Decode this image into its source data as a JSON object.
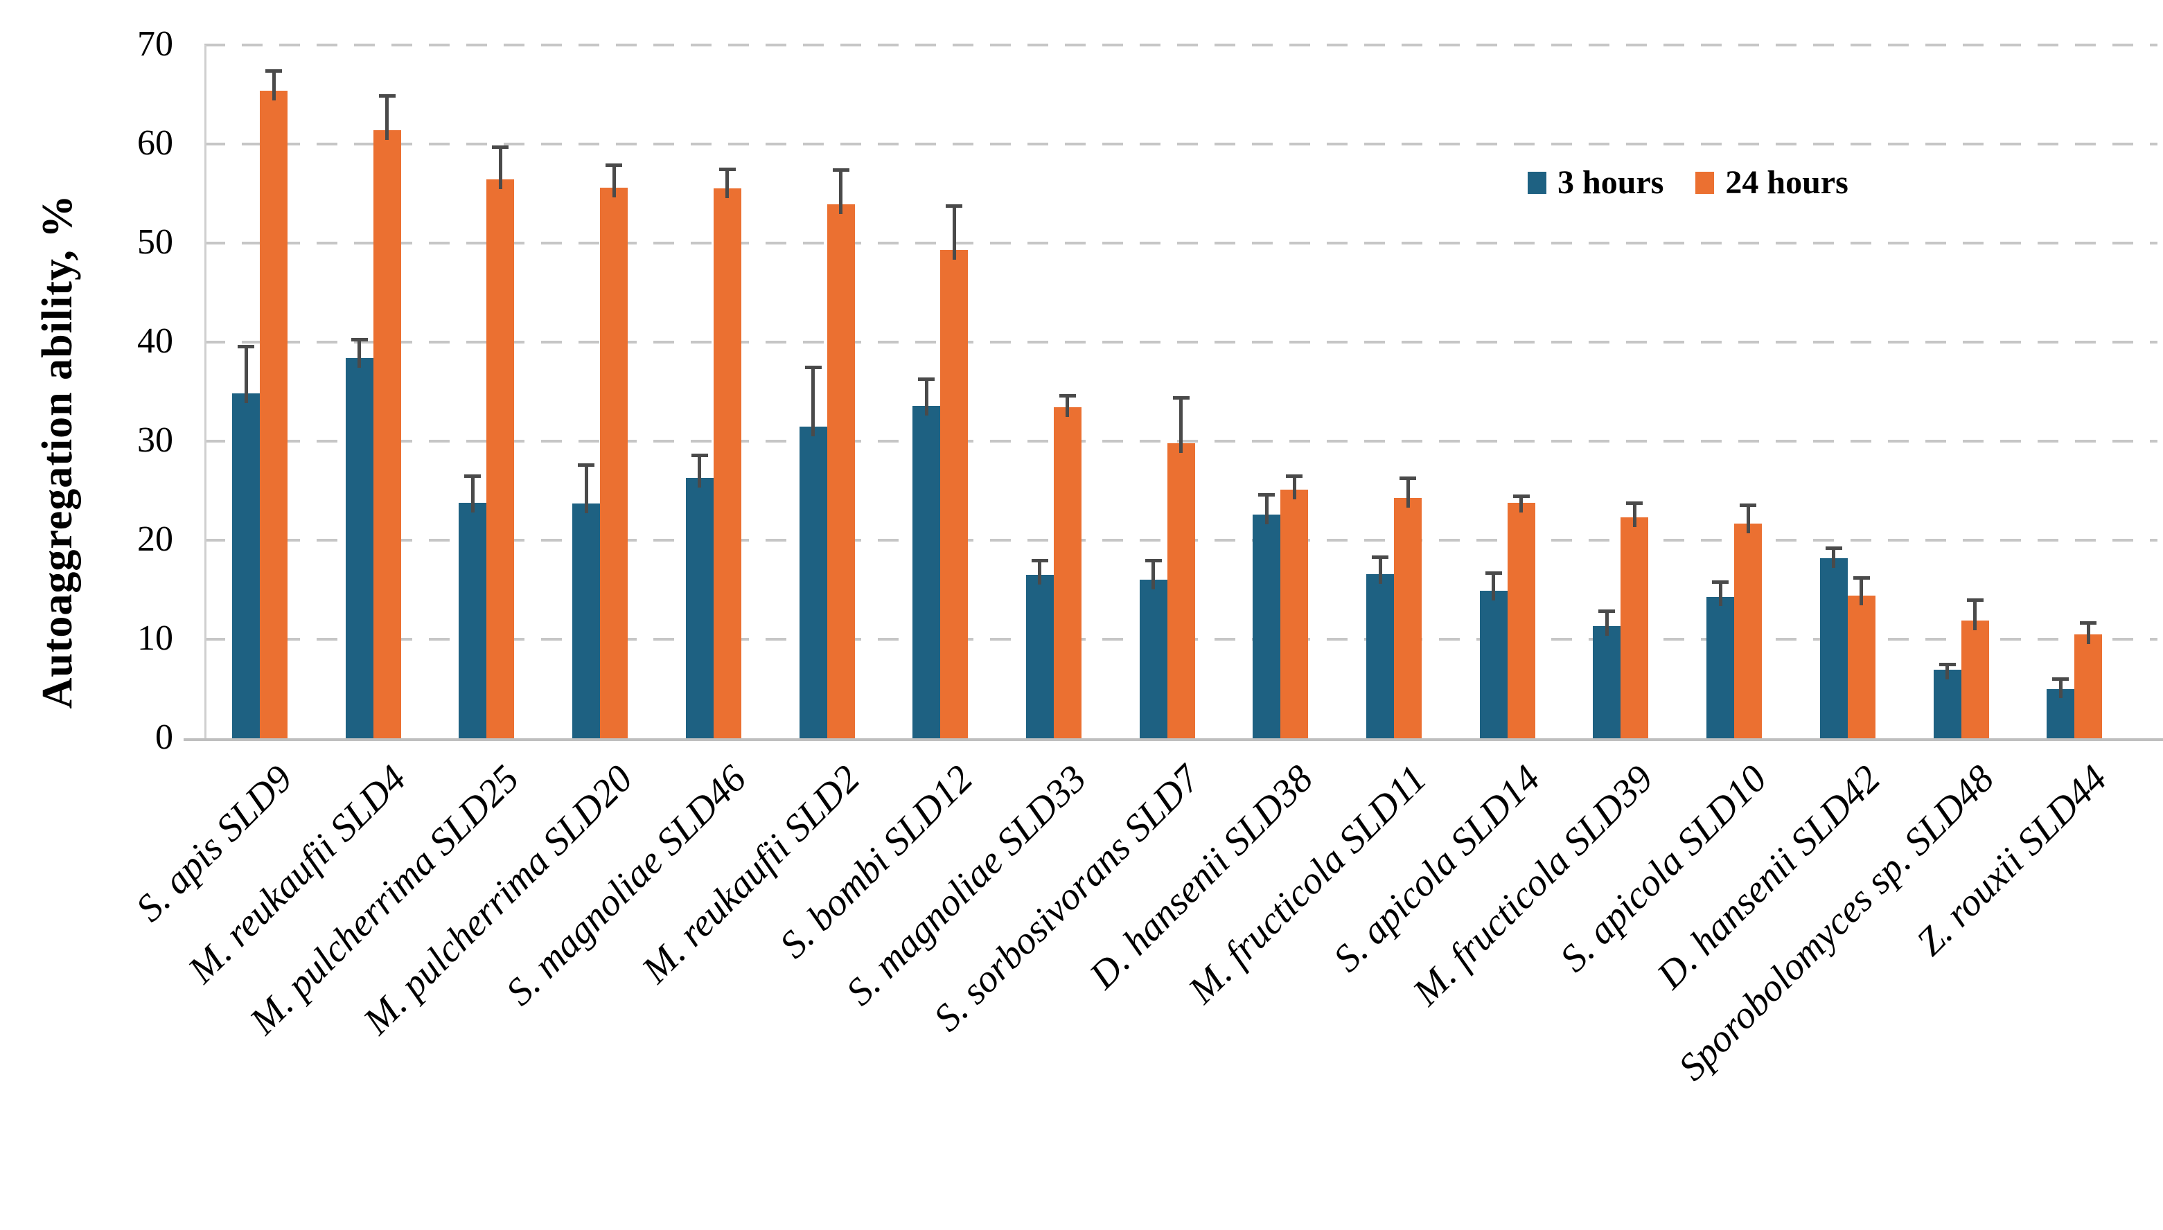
{
  "chart_data": {
    "type": "bar",
    "title": "",
    "xlabel": "",
    "ylabel": "Autoaggregation ability, %",
    "ylim": [
      0,
      70
    ],
    "yticks": [
      0,
      10,
      20,
      30,
      40,
      50,
      60,
      70
    ],
    "grid": "horizontal dashed gridlines at every 10 units",
    "legend_position": "top-right inside plot",
    "gridline_color": "#c6c6c6",
    "axis_color": "#bfbfbf",
    "errorbar_color": "#4a4a4a",
    "categories": [
      "S. apis SLD9",
      "M. reukaufii SLD4",
      "M. pulcherrima SLD25",
      "M. pulcherrima SLD20",
      "S. magnoliae SLD46",
      "M. reukaufii SLD2",
      "S. bombi SLD12",
      "S. magnoliae SLD33",
      "S. sorbosivorans SLD7",
      "D. hansenii SLD38",
      "M. fructicola SLD11",
      "S. apicola SLD14",
      "M. fructicola SLD39",
      "S. apicola SLD10",
      "D. hansenii SLD42",
      "Sporobolomyces sp. SLD48",
      "Z. rouxii SLD44"
    ],
    "series": [
      {
        "name": "3 hours",
        "color": "#1e6182",
        "values": [
          34.8,
          38.4,
          23.8,
          23.7,
          26.3,
          31.5,
          33.6,
          16.5,
          16.0,
          22.6,
          16.6,
          14.9,
          11.3,
          14.3,
          18.2,
          6.9,
          5.0
        ],
        "errors": [
          4.8,
          1.9,
          2.7,
          3.9,
          2.3,
          6.0,
          2.7,
          1.5,
          2.0,
          2.0,
          1.7,
          1.8,
          1.6,
          1.5,
          1.0,
          0.6,
          1.0
        ]
      },
      {
        "name": "24 hours",
        "color": "#eb7031",
        "values": [
          65.4,
          61.4,
          56.4,
          55.6,
          55.5,
          53.9,
          49.3,
          33.4,
          29.8,
          25.1,
          24.3,
          23.8,
          22.3,
          21.7,
          14.4,
          11.9,
          10.5
        ],
        "errors": [
          2.0,
          3.5,
          3.3,
          2.3,
          2.0,
          3.5,
          4.5,
          1.2,
          4.6,
          1.4,
          2.0,
          0.7,
          1.5,
          1.9,
          1.8,
          2.1,
          1.2
        ]
      }
    ]
  }
}
